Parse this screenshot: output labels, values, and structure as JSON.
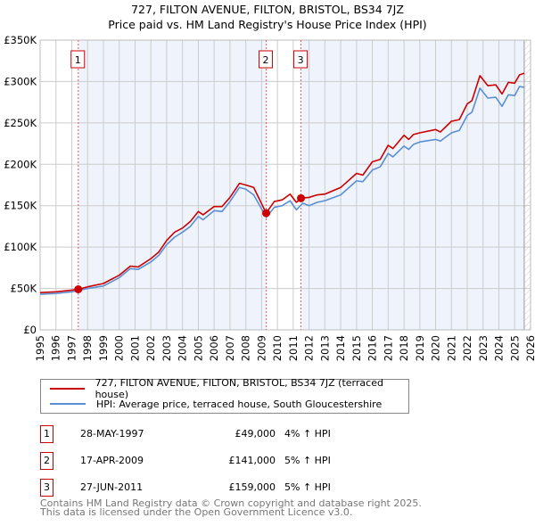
{
  "title": "727, FILTON AVENUE, FILTON, BRISTOL, BS34 7JZ",
  "subtitle": "Price paid vs. HM Land Registry's House Price Index (HPI)",
  "chart_data": {
    "type": "line",
    "title": "Price paid vs. HM Land Registry's House Price Index (HPI)",
    "xlim": [
      1995,
      2026
    ],
    "ylim": [
      0,
      350000
    ],
    "x_ticks": [
      "1995",
      "1996",
      "1997",
      "1998",
      "1999",
      "2000",
      "2001",
      "2002",
      "2003",
      "2004",
      "2005",
      "2006",
      "2007",
      "2008",
      "2009",
      "2010",
      "2011",
      "2012",
      "2013",
      "2014",
      "2015",
      "2016",
      "2017",
      "2018",
      "2019",
      "2020",
      "2021",
      "2022",
      "2023",
      "2024",
      "2025",
      "2026"
    ],
    "y_ticks": [
      {
        "v": 0,
        "l": "£0"
      },
      {
        "v": 50000,
        "l": "£50K"
      },
      {
        "v": 100000,
        "l": "£100K"
      },
      {
        "v": 150000,
        "l": "£150K"
      },
      {
        "v": 200000,
        "l": "£200K"
      },
      {
        "v": 250000,
        "l": "£250K"
      },
      {
        "v": 300000,
        "l": "£300K"
      },
      {
        "v": 350000,
        "l": "£350K"
      }
    ],
    "grid": true,
    "series": [
      {
        "name": "727, FILTON AVENUE, FILTON, BRISTOL, BS34 7JZ (terraced house)",
        "color": "#cc0000",
        "x": [
          1995,
          1996,
          1997,
          1997.41,
          1998,
          1999,
          2000,
          2000.7,
          2001.2,
          2002,
          2002.5,
          2003,
          2003.5,
          2004,
          2004.5,
          2005,
          2005.3,
          2006,
          2006.5,
          2007,
          2007.6,
          2008,
          2008.5,
          2009.29,
          2009.8,
          2010.3,
          2010.8,
          2011.2,
          2011.49,
          2012,
          2012.5,
          2013,
          2014,
          2015,
          2015.4,
          2016,
          2016.5,
          2017,
          2017.3,
          2018,
          2018.3,
          2018.6,
          2019,
          2020,
          2020.3,
          2021,
          2021.5,
          2022,
          2022.3,
          2022.8,
          2023.3,
          2023.8,
          2024.2,
          2024.6,
          2025,
          2025.3,
          2025.6
        ],
        "values": [
          45000,
          46000,
          48000,
          49000,
          52000,
          56000,
          66000,
          77000,
          76000,
          86000,
          94000,
          108000,
          118000,
          123000,
          131000,
          143000,
          139000,
          149000,
          149000,
          160000,
          177000,
          175000,
          172000,
          141000,
          155000,
          157000,
          164000,
          154000,
          159000,
          160000,
          163000,
          164000,
          172000,
          189000,
          187000,
          203000,
          206000,
          223000,
          219000,
          235000,
          230000,
          236000,
          238000,
          242000,
          239000,
          252000,
          254000,
          273000,
          277000,
          307000,
          295000,
          296000,
          285000,
          299000,
          298000,
          308000,
          310000
        ]
      },
      {
        "name": "HPI: Average price, terraced house, South Gloucestershire",
        "color": "#5b8fd4",
        "x": [
          1995,
          1996,
          1997,
          1998,
          1999,
          2000,
          2000.7,
          2001.2,
          2002,
          2002.5,
          2003,
          2003.5,
          2004,
          2004.5,
          2005,
          2005.3,
          2006,
          2006.5,
          2007,
          2007.6,
          2008,
          2008.5,
          2009.3,
          2009.8,
          2010.3,
          2010.8,
          2011.2,
          2011.6,
          2012,
          2012.5,
          2013,
          2014,
          2015,
          2015.4,
          2016,
          2016.5,
          2017,
          2017.3,
          2018,
          2018.3,
          2018.6,
          2019,
          2020,
          2020.3,
          2021,
          2021.5,
          2022,
          2022.3,
          2022.8,
          2023.3,
          2023.8,
          2024.2,
          2024.6,
          2025,
          2025.3,
          2025.6
        ],
        "values": [
          43000,
          44000,
          46000,
          50000,
          53000,
          63000,
          74000,
          73000,
          82000,
          90000,
          103000,
          112000,
          118000,
          125000,
          137000,
          133000,
          144000,
          143000,
          155000,
          172000,
          170000,
          163000,
          136000,
          148000,
          150000,
          156000,
          145000,
          153000,
          150000,
          154000,
          156000,
          163000,
          180000,
          179000,
          193000,
          197000,
          213000,
          209000,
          222000,
          218000,
          224000,
          227000,
          230000,
          228000,
          238000,
          241000,
          259000,
          263000,
          292000,
          280000,
          281000,
          270000,
          284000,
          283000,
          294000,
          293000
        ]
      }
    ],
    "sales": [
      {
        "label": "1",
        "x": 1997.41,
        "value": 49000
      },
      {
        "label": "2",
        "x": 2009.29,
        "value": 141000
      },
      {
        "label": "3",
        "x": 2011.49,
        "value": 159000
      }
    ],
    "shaded_ranges": [
      [
        1997.41,
        2009.29
      ],
      [
        2011.49,
        2025.6
      ]
    ],
    "hatched_from": 2025.6
  },
  "legend": {
    "red": "727, FILTON AVENUE, FILTON, BRISTOL, BS34 7JZ (terraced house)",
    "blue": "HPI: Average price, terraced house, South Gloucestershire"
  },
  "table": [
    {
      "num": "1",
      "date": "28-MAY-1997",
      "price": "£49,000",
      "hpi": "4% ↑ HPI"
    },
    {
      "num": "2",
      "date": "17-APR-2009",
      "price": "£141,000",
      "hpi": "5% ↑ HPI"
    },
    {
      "num": "3",
      "date": "27-JUN-2011",
      "price": "£159,000",
      "hpi": "5% ↑ HPI"
    }
  ],
  "footer": [
    "Contains HM Land Registry data © Crown copyright and database right 2025.",
    "This data is licensed under the Open Government Licence v3.0."
  ]
}
